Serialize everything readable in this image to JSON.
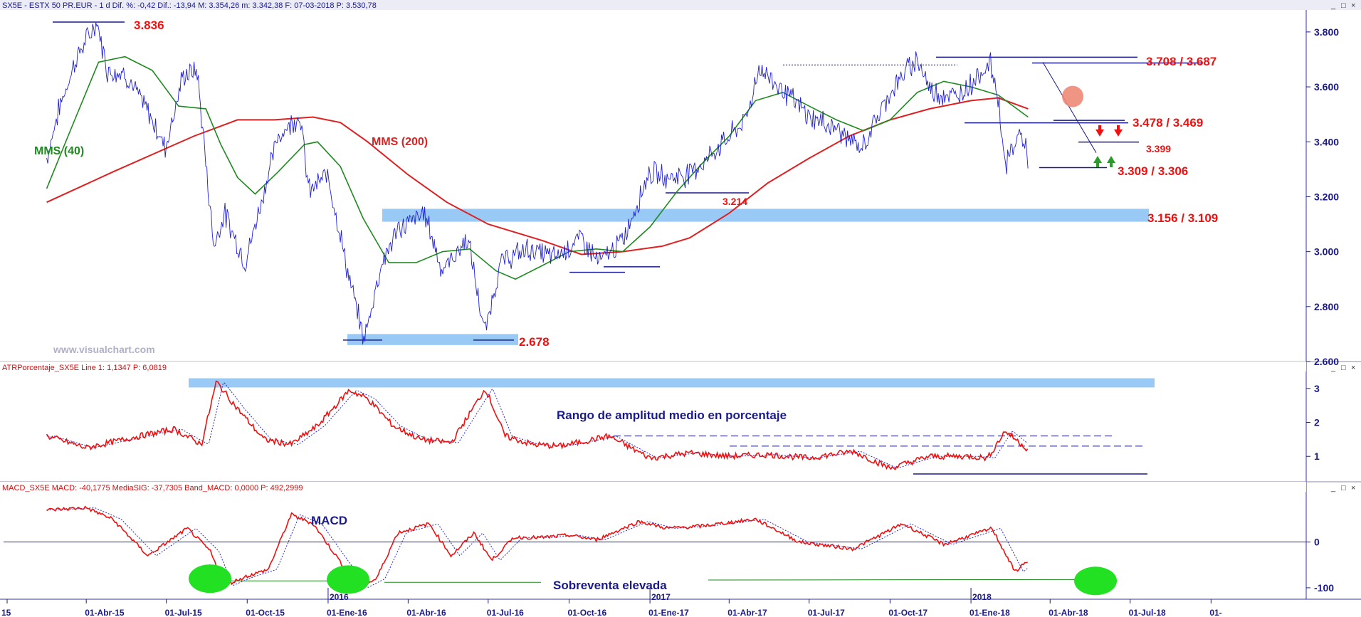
{
  "header": {
    "main": "SX5E - ESTX 50 PR.EUR -  1 d  Dif. %: -0,42  Dif.: -13,94  M: 3.354,26  m: 3.342,38  F: 07-03-2018  P: 3.530,78",
    "atr": "ATRPorcentaje_SX5E  Line 1: 1,1347  P: 6,0819",
    "macd": "MACD_SX5E  MACD: -40,1775  MediaSIG: -37,7305  Band_MACD: 0,0000  P: 492,2999"
  },
  "watermark": "www.visualchart.com",
  "icons": [
    "minimize-icon",
    "restore-icon",
    "close-icon"
  ],
  "colors": {
    "price": "#2020d8",
    "mms40": "#1e8a1e",
    "mms200": "#e02020",
    "zone": "#99c9f5",
    "annotation_red": "#ee1111",
    "annotation_blue": "#1a1a8c",
    "macd_line": "#ee1111",
    "signal_line": "#2a2ad0",
    "oversold_marker": "#22e022"
  },
  "chart_data": [
    {
      "type": "line",
      "panel": "price",
      "ylim": [
        2600,
        3880
      ],
      "y_ticks": [
        "3.800",
        "3.600",
        "3.400",
        "3.200",
        "3.000",
        "2.800",
        "2.600"
      ],
      "x_range": [
        "2015-02-15",
        "2019-01-05"
      ],
      "series": [
        {
          "name": "MMS (40)",
          "points": [
            [
              "2015-02-15",
              3230
            ],
            [
              "2015-03-15",
              3450
            ],
            [
              "2015-04-15",
              3690
            ],
            [
              "2015-05-15",
              3710
            ],
            [
              "2015-06-15",
              3660
            ],
            [
              "2015-07-15",
              3530
            ],
            [
              "2015-08-15",
              3520
            ],
            [
              "2015-09-01",
              3390
            ],
            [
              "2015-09-20",
              3270
            ],
            [
              "2015-10-10",
              3210
            ],
            [
              "2015-11-05",
              3290
            ],
            [
              "2015-12-05",
              3390
            ],
            [
              "2015-12-20",
              3400
            ],
            [
              "2016-01-15",
              3310
            ],
            [
              "2016-02-10",
              3120
            ],
            [
              "2016-03-10",
              2960
            ],
            [
              "2016-04-10",
              2960
            ],
            [
              "2016-05-10",
              3000
            ],
            [
              "2016-06-10",
              3010
            ],
            [
              "2016-07-10",
              2930
            ],
            [
              "2016-08-01",
              2900
            ],
            [
              "2016-09-01",
              2950
            ],
            [
              "2016-10-01",
              3000
            ],
            [
              "2016-11-01",
              3010
            ],
            [
              "2016-12-01",
              3000
            ],
            [
              "2017-01-01",
              3090
            ],
            [
              "2017-02-01",
              3220
            ],
            [
              "2017-03-01",
              3320
            ],
            [
              "2017-04-01",
              3420
            ],
            [
              "2017-05-01",
              3550
            ],
            [
              "2017-06-01",
              3580
            ],
            [
              "2017-07-01",
              3530
            ],
            [
              "2017-08-01",
              3480
            ],
            [
              "2017-09-01",
              3440
            ],
            [
              "2017-10-01",
              3480
            ],
            [
              "2017-11-01",
              3580
            ],
            [
              "2017-12-01",
              3620
            ],
            [
              "2018-01-01",
              3600
            ],
            [
              "2018-02-01",
              3570
            ],
            [
              "2018-03-07",
              3490
            ]
          ]
        },
        {
          "name": "MMS (200)",
          "points": [
            [
              "2015-02-15",
              3180
            ],
            [
              "2015-05-01",
              3290
            ],
            [
              "2015-08-01",
              3420
            ],
            [
              "2015-09-20",
              3480
            ],
            [
              "2015-11-01",
              3480
            ],
            [
              "2015-12-15",
              3490
            ],
            [
              "2016-01-15",
              3470
            ],
            [
              "2016-02-15",
              3400
            ],
            [
              "2016-04-01",
              3280
            ],
            [
              "2016-05-15",
              3180
            ],
            [
              "2016-07-01",
              3100
            ],
            [
              "2016-09-01",
              3040
            ],
            [
              "2016-10-15",
              2990
            ],
            [
              "2016-12-01",
              3000
            ],
            [
              "2017-01-15",
              3020
            ],
            [
              "2017-02-15",
              3050
            ],
            [
              "2017-04-01",
              3140
            ],
            [
              "2017-05-15",
              3250
            ],
            [
              "2017-07-01",
              3340
            ],
            [
              "2017-08-15",
              3420
            ],
            [
              "2017-10-01",
              3480
            ],
            [
              "2017-11-15",
              3520
            ],
            [
              "2018-01-01",
              3550
            ],
            [
              "2018-02-01",
              3560
            ],
            [
              "2018-03-07",
              3520
            ]
          ]
        },
        {
          "name": "price",
          "points": [
            [
              "2015-02-15",
              3340
            ],
            [
              "2015-03-01",
              3520
            ],
            [
              "2015-03-20",
              3700
            ],
            [
              "2015-04-13",
              3836
            ],
            [
              "2015-04-25",
              3660
            ],
            [
              "2015-05-15",
              3650
            ],
            [
              "2015-06-10",
              3510
            ],
            [
              "2015-06-30",
              3380
            ],
            [
              "2015-07-20",
              3640
            ],
            [
              "2015-08-05",
              3660
            ],
            [
              "2015-08-24",
              3020
            ],
            [
              "2015-09-05",
              3140
            ],
            [
              "2015-09-29",
              2960
            ],
            [
              "2015-10-20",
              3220
            ],
            [
              "2015-11-05",
              3420
            ],
            [
              "2015-11-30",
              3500
            ],
            [
              "2015-12-10",
              3220
            ],
            [
              "2016-01-01",
              3280
            ],
            [
              "2016-01-25",
              2900
            ],
            [
              "2016-02-11",
              2678
            ],
            [
              "2016-03-01",
              2950
            ],
            [
              "2016-03-20",
              3080
            ],
            [
              "2016-04-20",
              3140
            ],
            [
              "2016-05-10",
              2930
            ],
            [
              "2016-06-08",
              3050
            ],
            [
              "2016-06-27",
              2700
            ],
            [
              "2016-07-15",
              2960
            ],
            [
              "2016-08-15",
              3010
            ],
            [
              "2016-09-15",
              2980
            ],
            [
              "2016-10-15",
              3050
            ],
            [
              "2016-11-04",
              2960
            ],
            [
              "2016-12-01",
              3040
            ],
            [
              "2016-12-31",
              3290
            ],
            [
              "2017-01-20",
              3270
            ],
            [
              "2017-02-10",
              3280
            ],
            [
              "2017-03-01",
              3320
            ],
            [
              "2017-04-20",
              3480
            ],
            [
              "2017-05-05",
              3670
            ],
            [
              "2017-06-01",
              3590
            ],
            [
              "2017-07-01",
              3490
            ],
            [
              "2017-08-01",
              3450
            ],
            [
              "2017-08-29",
              3370
            ],
            [
              "2017-10-01",
              3580
            ],
            [
              "2017-11-01",
              3708
            ],
            [
              "2017-11-15",
              3590
            ],
            [
              "2017-12-15",
              3560
            ],
            [
              "2018-01-23",
              3687
            ],
            [
              "2018-02-01",
              3560
            ],
            [
              "2018-02-09",
              3310
            ],
            [
              "2018-02-26",
              3440
            ],
            [
              "2018-03-07",
              3340
            ]
          ]
        }
      ],
      "annotations": [
        "3.836",
        "3.708 / 3.687",
        "3.478 / 3.469",
        "3.399",
        "3.309 / 3.306",
        "3.214",
        "3.156 / 3.109",
        "2.678",
        "MMS (40)",
        "MMS (200)"
      ]
    },
    {
      "type": "line",
      "panel": "atr",
      "ylim": [
        0.25,
        3.5
      ],
      "y_ticks": [
        "3",
        "2",
        "1"
      ],
      "series": [
        {
          "name": "ATR %",
          "points": [
            [
              "2015-02-15",
              1.6
            ],
            [
              "2015-04-01",
              1.25
            ],
            [
              "2015-06-01",
              1.6
            ],
            [
              "2015-07-10",
              1.8
            ],
            [
              "2015-08-10",
              1.35
            ],
            [
              "2015-08-27",
              3.2
            ],
            [
              "2015-09-20",
              2.4
            ],
            [
              "2015-10-20",
              1.5
            ],
            [
              "2015-11-20",
              1.35
            ],
            [
              "2015-12-20",
              1.9
            ],
            [
              "2016-01-25",
              2.95
            ],
            [
              "2016-02-15",
              2.7
            ],
            [
              "2016-03-15",
              1.9
            ],
            [
              "2016-04-15",
              1.5
            ],
            [
              "2016-05-20",
              1.4
            ],
            [
              "2016-06-28",
              3.0
            ],
            [
              "2016-07-20",
              1.6
            ],
            [
              "2016-08-20",
              1.35
            ],
            [
              "2016-09-20",
              1.3
            ],
            [
              "2016-10-20",
              1.45
            ],
            [
              "2016-11-15",
              1.6
            ],
            [
              "2017-01-01",
              0.95
            ],
            [
              "2017-02-15",
              1.1
            ],
            [
              "2017-04-01",
              1.0
            ],
            [
              "2017-05-15",
              1.05
            ],
            [
              "2017-07-01",
              0.95
            ],
            [
              "2017-08-20",
              1.15
            ],
            [
              "2017-10-01",
              0.65
            ],
            [
              "2017-11-15",
              1.0
            ],
            [
              "2018-01-01",
              1.0
            ],
            [
              "2018-01-20",
              0.95
            ],
            [
              "2018-02-09",
              1.75
            ],
            [
              "2018-03-07",
              1.2
            ]
          ]
        }
      ],
      "annotations": [
        "Rango de amplitud medio en porcentaje"
      ]
    },
    {
      "type": "line",
      "panel": "macd",
      "ylim": [
        -125,
        110
      ],
      "y_ticks": [
        "0",
        "-100"
      ],
      "series": [
        {
          "name": "MACD",
          "points": [
            [
              "2015-02-15",
              70
            ],
            [
              "2015-04-01",
              75
            ],
            [
              "2015-05-01",
              50
            ],
            [
              "2015-06-10",
              -30
            ],
            [
              "2015-07-25",
              30
            ],
            [
              "2015-08-20",
              -20
            ],
            [
              "2015-09-05",
              -95
            ],
            [
              "2015-09-30",
              -75
            ],
            [
              "2015-10-25",
              -60
            ],
            [
              "2015-11-20",
              60
            ],
            [
              "2015-12-15",
              40
            ],
            [
              "2016-01-10",
              -30
            ],
            [
              "2016-02-05",
              -100
            ],
            [
              "2016-02-25",
              -80
            ],
            [
              "2016-03-20",
              20
            ],
            [
              "2016-04-25",
              40
            ],
            [
              "2016-05-20",
              -30
            ],
            [
              "2016-06-15",
              20
            ],
            [
              "2016-07-05",
              -40
            ],
            [
              "2016-07-30",
              10
            ],
            [
              "2016-09-01",
              10
            ],
            [
              "2016-10-01",
              15
            ],
            [
              "2016-11-01",
              5
            ],
            [
              "2016-12-20",
              45
            ],
            [
              "2017-01-20",
              30
            ],
            [
              "2017-03-01",
              35
            ],
            [
              "2017-05-01",
              50
            ],
            [
              "2017-06-20",
              0
            ],
            [
              "2017-08-20",
              -15
            ],
            [
              "2017-10-15",
              40
            ],
            [
              "2017-12-01",
              -5
            ],
            [
              "2018-01-25",
              30
            ],
            [
              "2018-02-20",
              -65
            ],
            [
              "2018-03-07",
              -40
            ]
          ]
        }
      ],
      "annotations": [
        "MACD",
        "Sobreventa elevada"
      ]
    }
  ],
  "x_axis": {
    "labels": [
      {
        "date": "2015-01-01",
        "text": "15"
      },
      {
        "date": "2015-04-01",
        "text": "01-Abr-15"
      },
      {
        "date": "2015-07-01",
        "text": "01-Jul-15"
      },
      {
        "date": "2015-10-01",
        "text": "01-Oct-15"
      },
      {
        "date": "2016-01-01",
        "text": "01-Ene-16"
      },
      {
        "date": "2016-04-01",
        "text": "01-Abr-16"
      },
      {
        "date": "2016-07-01",
        "text": "01-Jul-16"
      },
      {
        "date": "2016-10-01",
        "text": "01-Oct-16"
      },
      {
        "date": "2017-01-01",
        "text": "01-Ene-17"
      },
      {
        "date": "2017-04-01",
        "text": "01-Abr-17"
      },
      {
        "date": "2017-07-01",
        "text": "01-Jul-17"
      },
      {
        "date": "2017-10-01",
        "text": "01-Oct-17"
      },
      {
        "date": "2018-01-01",
        "text": "01-Ene-18"
      },
      {
        "date": "2018-04-01",
        "text": "01-Abr-18"
      },
      {
        "date": "2018-07-01",
        "text": "01-Jul-18"
      },
      {
        "date": "2018-10-01",
        "text": "01-"
      }
    ],
    "years": [
      {
        "date": "2016-01-01",
        "text": "2016"
      },
      {
        "date": "2017-01-01",
        "text": "2017"
      },
      {
        "date": "2018-01-01",
        "text": "2018"
      }
    ]
  }
}
